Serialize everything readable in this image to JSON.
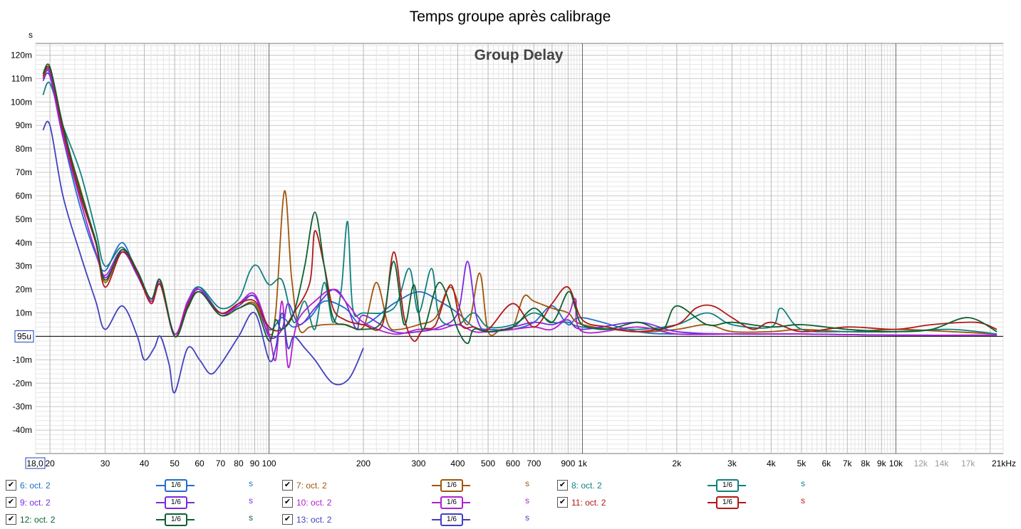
{
  "window_title": "Temps groupe après calibrage",
  "chart_data": {
    "type": "line",
    "title": "Group Delay",
    "y_unit_label": "s",
    "x_scale": "log",
    "xlim": [
      18.0,
      22000
    ],
    "ylim": [
      -0.05,
      0.125
    ],
    "grid": true,
    "y_ticks": [
      {
        "v": 0.12,
        "label": "120m"
      },
      {
        "v": 0.11,
        "label": "110m"
      },
      {
        "v": 0.1,
        "label": "100m"
      },
      {
        "v": 0.09,
        "label": "90m"
      },
      {
        "v": 0.08,
        "label": "80m"
      },
      {
        "v": 0.07,
        "label": "70m"
      },
      {
        "v": 0.06,
        "label": "60m"
      },
      {
        "v": 0.05,
        "label": "50m"
      },
      {
        "v": 0.04,
        "label": "40m"
      },
      {
        "v": 0.03,
        "label": "30m"
      },
      {
        "v": 0.02,
        "label": "20m"
      },
      {
        "v": 0.01,
        "label": "10m"
      },
      {
        "v": -0.01,
        "label": "-10m"
      },
      {
        "v": -0.02,
        "label": "-20m"
      },
      {
        "v": -0.03,
        "label": "-30m"
      },
      {
        "v": -0.04,
        "label": "-40m"
      }
    ],
    "y_ref_label": "95u",
    "x_ticks": [
      {
        "v": 20,
        "label": "20"
      },
      {
        "v": 30,
        "label": "30"
      },
      {
        "v": 40,
        "label": "40"
      },
      {
        "v": 50,
        "label": "50"
      },
      {
        "v": 60,
        "label": "60"
      },
      {
        "v": 70,
        "label": "70"
      },
      {
        "v": 80,
        "label": "80"
      },
      {
        "v": 90,
        "label": "90"
      },
      {
        "v": 100,
        "label": "100"
      },
      {
        "v": 200,
        "label": "200"
      },
      {
        "v": 300,
        "label": "300"
      },
      {
        "v": 400,
        "label": "400"
      },
      {
        "v": 500,
        "label": "500"
      },
      {
        "v": 600,
        "label": "600"
      },
      {
        "v": 700,
        "label": "700"
      },
      {
        "v": 900,
        "label": "900"
      },
      {
        "v": 1000,
        "label": "1k"
      },
      {
        "v": 2000,
        "label": "2k"
      },
      {
        "v": 3000,
        "label": "3k"
      },
      {
        "v": 4000,
        "label": "4k"
      },
      {
        "v": 5000,
        "label": "5k"
      },
      {
        "v": 6000,
        "label": "6k"
      },
      {
        "v": 7000,
        "label": "7k"
      },
      {
        "v": 8000,
        "label": "8k"
      },
      {
        "v": 9000,
        "label": "9k"
      },
      {
        "v": 10000,
        "label": "10k"
      },
      {
        "v": 12000,
        "label": "12k"
      },
      {
        "v": 14000,
        "label": "14k"
      },
      {
        "v": 17000,
        "label": "17k"
      },
      {
        "v": 21000,
        "label": "21kHz"
      }
    ],
    "x_start_label": "18,0",
    "series": [
      {
        "name": "6: oct. 2",
        "color": "#1f6fc8",
        "x": [
          19,
          20,
          22,
          25,
          28,
          30,
          34,
          38,
          42,
          45,
          50,
          55,
          60,
          70,
          80,
          90,
          100,
          110,
          120,
          135,
          150,
          175,
          200,
          250,
          300,
          350,
          400,
          450,
          500,
          600,
          700,
          800,
          900,
          1000,
          1500,
          2000,
          3000,
          5000,
          10000,
          21000
        ],
        "y": [
          0.11,
          0.112,
          0.085,
          0.055,
          0.035,
          0.028,
          0.04,
          0.026,
          0.016,
          0.023,
          0.001,
          0.015,
          0.021,
          0.01,
          0.014,
          0.017,
          0.003,
          0.008,
          0.004,
          0.008,
          0.015,
          0.012,
          0.005,
          0.014,
          0.019,
          0.015,
          0.01,
          0.004,
          0.003,
          0.003,
          0.006,
          0.013,
          0.005,
          0.008,
          0.002,
          0.001,
          0.001,
          0.001,
          0.0005,
          0.0005
        ]
      },
      {
        "name": "7: oct. 2",
        "color": "#a0560c",
        "x": [
          19,
          20,
          22,
          25,
          28,
          30,
          34,
          38,
          42,
          45,
          50,
          55,
          60,
          70,
          80,
          90,
          100,
          105,
          112,
          118,
          125,
          135,
          150,
          175,
          200,
          220,
          240,
          260,
          300,
          340,
          380,
          430,
          470,
          500,
          550,
          600,
          650,
          700,
          800,
          900,
          1000,
          1500,
          2000,
          2500,
          3000,
          4000,
          5000,
          7000,
          10000,
          15000,
          21000
        ],
        "y": [
          0.11,
          0.113,
          0.088,
          0.063,
          0.04,
          0.023,
          0.037,
          0.028,
          0.015,
          0.024,
          0.0,
          0.013,
          0.02,
          0.009,
          0.012,
          0.014,
          0.001,
          0.01,
          0.062,
          0.025,
          0.003,
          0.004,
          0.005,
          0.005,
          0.004,
          0.023,
          0.005,
          0.003,
          0.005,
          0.008,
          0.021,
          0.005,
          0.027,
          0.002,
          0.003,
          0.004,
          0.017,
          0.015,
          0.012,
          0.01,
          0.005,
          0.002,
          0.003,
          0.005,
          0.002,
          0.002,
          0.003,
          0.002,
          0.003,
          0.002,
          0.001
        ]
      },
      {
        "name": "8: oct. 2",
        "color": "#118080",
        "x": [
          19,
          20,
          22,
          25,
          28,
          30,
          34,
          38,
          42,
          45,
          50,
          55,
          60,
          70,
          80,
          87,
          92,
          100,
          110,
          120,
          130,
          140,
          150,
          160,
          170,
          178,
          185,
          200,
          250,
          280,
          300,
          330,
          350,
          400,
          450,
          500,
          600,
          700,
          800,
          900,
          1000,
          1500,
          2000,
          2500,
          3000,
          4000,
          4300,
          5000,
          7000,
          10000,
          15000,
          21000
        ],
        "y": [
          0.103,
          0.108,
          0.09,
          0.07,
          0.045,
          0.03,
          0.038,
          0.027,
          0.015,
          0.023,
          0.0,
          0.013,
          0.021,
          0.012,
          0.016,
          0.028,
          0.03,
          0.022,
          0.024,
          0.006,
          0.015,
          0.003,
          0.023,
          0.006,
          0.02,
          0.049,
          0.012,
          0.01,
          0.012,
          0.029,
          0.01,
          0.029,
          0.008,
          0.005,
          0.01,
          0.004,
          0.005,
          0.01,
          0.006,
          0.006,
          0.004,
          0.003,
          0.005,
          0.01,
          0.005,
          0.004,
          0.012,
          0.003,
          0.002,
          0.002,
          0.003,
          0.001
        ]
      },
      {
        "name": "9: oct. 2",
        "color": "#7a2be0",
        "x": [
          19,
          20,
          22,
          25,
          28,
          30,
          34,
          38,
          42,
          45,
          50,
          55,
          60,
          70,
          80,
          90,
          100,
          110,
          115,
          125,
          140,
          160,
          175,
          190,
          200,
          250,
          300,
          350,
          400,
          430,
          460,
          500,
          600,
          700,
          800,
          900,
          1000,
          1500,
          2000,
          3000,
          5000,
          10000,
          21000
        ],
        "y": [
          0.109,
          0.111,
          0.085,
          0.06,
          0.04,
          0.025,
          0.036,
          0.026,
          0.015,
          0.022,
          0.001,
          0.014,
          0.02,
          0.01,
          0.013,
          0.017,
          0.0,
          0.003,
          0.014,
          0.005,
          0.012,
          0.02,
          0.015,
          0.003,
          0.009,
          0.002,
          0.002,
          0.004,
          0.01,
          0.032,
          0.008,
          0.002,
          0.004,
          0.006,
          0.005,
          0.007,
          0.003,
          0.006,
          0.002,
          0.001,
          0.001,
          0.0005,
          0.0005
        ]
      },
      {
        "name": "10: oct. 2",
        "color": "#b020d0",
        "x": [
          19,
          20,
          22,
          25,
          28,
          30,
          34,
          38,
          42,
          45,
          50,
          55,
          60,
          70,
          80,
          90,
          100,
          105,
          110,
          115,
          120,
          125,
          140,
          160,
          180,
          200,
          250,
          300,
          350,
          400,
          450,
          500,
          600,
          700,
          800,
          900,
          950,
          1000,
          1500,
          2000,
          3000,
          5000,
          10000,
          21000
        ],
        "y": [
          0.111,
          0.113,
          0.086,
          0.058,
          0.036,
          0.026,
          0.037,
          0.027,
          0.015,
          0.023,
          0.001,
          0.015,
          0.02,
          0.009,
          0.014,
          0.018,
          0.001,
          -0.01,
          0.015,
          -0.013,
          0.0,
          0.008,
          0.015,
          0.02,
          0.013,
          0.006,
          0.001,
          0.003,
          0.003,
          0.005,
          0.002,
          0.002,
          0.003,
          0.004,
          0.003,
          0.009,
          0.016,
          0.002,
          0.004,
          0.001,
          0.001,
          0.001,
          0.0005,
          0.0005
        ]
      },
      {
        "name": "11: oct. 2",
        "color": "#b01818",
        "x": [
          19,
          20,
          22,
          25,
          28,
          30,
          34,
          38,
          42,
          45,
          50,
          55,
          60,
          70,
          80,
          90,
          100,
          110,
          120,
          135,
          140,
          150,
          160,
          175,
          200,
          230,
          250,
          270,
          290,
          310,
          340,
          380,
          410,
          450,
          500,
          600,
          700,
          800,
          900,
          1000,
          1200,
          1500,
          2000,
          2300,
          2600,
          3000,
          3500,
          4000,
          5000,
          7000,
          10000,
          13000,
          18000,
          21000
        ],
        "y": [
          0.111,
          0.114,
          0.088,
          0.06,
          0.04,
          0.021,
          0.036,
          0.027,
          0.014,
          0.022,
          0.0,
          0.013,
          0.019,
          0.01,
          0.014,
          0.015,
          0.004,
          0.003,
          0.01,
          0.023,
          0.045,
          0.03,
          0.012,
          0.007,
          0.005,
          0.005,
          0.036,
          0.008,
          -0.002,
          0.003,
          0.005,
          0.022,
          0.005,
          0.004,
          0.003,
          0.014,
          0.004,
          0.014,
          0.021,
          0.007,
          0.004,
          0.002,
          0.005,
          0.012,
          0.013,
          0.008,
          0.003,
          0.006,
          0.002,
          0.004,
          0.003,
          0.005,
          0.006,
          0.003
        ]
      },
      {
        "name": "12: oct. 2",
        "color": "#0c6030",
        "x": [
          19,
          20,
          22,
          25,
          28,
          30,
          34,
          38,
          42,
          45,
          50,
          55,
          60,
          70,
          80,
          90,
          100,
          105,
          110,
          120,
          130,
          140,
          150,
          160,
          175,
          200,
          230,
          250,
          270,
          290,
          310,
          350,
          400,
          430,
          450,
          500,
          600,
          700,
          800,
          900,
          950,
          1000,
          1200,
          1500,
          1800,
          2000,
          2500,
          3000,
          4000,
          5000,
          7000,
          10000,
          13000,
          17000,
          21000
        ],
        "y": [
          0.112,
          0.115,
          0.09,
          0.062,
          0.041,
          0.024,
          0.037,
          0.028,
          0.016,
          0.024,
          0.0,
          0.012,
          0.019,
          0.009,
          0.012,
          0.013,
          -0.002,
          0.007,
          0.003,
          0.01,
          0.03,
          0.053,
          0.03,
          0.008,
          0.005,
          0.003,
          0.007,
          0.032,
          0.005,
          0.022,
          0.003,
          0.023,
          0.003,
          -0.003,
          0.003,
          0.002,
          0.004,
          0.012,
          0.006,
          0.019,
          0.012,
          0.005,
          0.003,
          0.006,
          0.003,
          0.013,
          0.005,
          0.006,
          0.004,
          0.005,
          0.003,
          0.002,
          0.003,
          0.008,
          0.002
        ]
      },
      {
        "name": "13: oct. 2",
        "color": "#4040c0",
        "x": [
          19,
          20,
          22,
          25,
          28,
          30,
          34,
          38,
          40,
          43,
          45,
          48,
          50,
          55,
          60,
          65,
          70,
          80,
          90,
          100,
          105,
          110,
          115,
          120,
          130,
          140,
          160,
          180,
          200
        ],
        "y": [
          0.088,
          0.09,
          0.06,
          0.035,
          0.015,
          0.003,
          0.013,
          0.0,
          -0.01,
          -0.005,
          0.0,
          -0.012,
          -0.024,
          -0.005,
          -0.01,
          -0.016,
          -0.012,
          0.0,
          0.01,
          -0.01,
          -0.005,
          0.01,
          -0.005,
          0.0,
          -0.005,
          -0.01,
          -0.02,
          -0.018,
          -0.005
        ]
      }
    ]
  },
  "legend": [
    {
      "label": "6: oct. 2",
      "smoothing": "1/6",
      "unit": "s",
      "checked": "✔",
      "color": "#1f6fc8"
    },
    {
      "label": "7: oct. 2",
      "smoothing": "1/6",
      "unit": "s",
      "checked": "✔",
      "color": "#a0560c"
    },
    {
      "label": "8: oct. 2",
      "smoothing": "1/6",
      "unit": "s",
      "checked": "✔",
      "color": "#118080"
    },
    {
      "label": "9: oct. 2",
      "smoothing": "1/6",
      "unit": "s",
      "checked": "✔",
      "color": "#7a2be0"
    },
    {
      "label": "10: oct. 2",
      "smoothing": "1/6",
      "unit": "s",
      "checked": "✔",
      "color": "#b020d0"
    },
    {
      "label": "11: oct. 2",
      "smoothing": "1/6",
      "unit": "s",
      "checked": "✔",
      "color": "#b01818"
    },
    {
      "label": "12: oct. 2",
      "smoothing": "1/6",
      "unit": "s",
      "checked": "✔",
      "color": "#0c6030"
    },
    {
      "label": "13: oct. 2",
      "smoothing": "1/6",
      "unit": "s",
      "checked": "✔",
      "color": "#4040c0"
    }
  ]
}
